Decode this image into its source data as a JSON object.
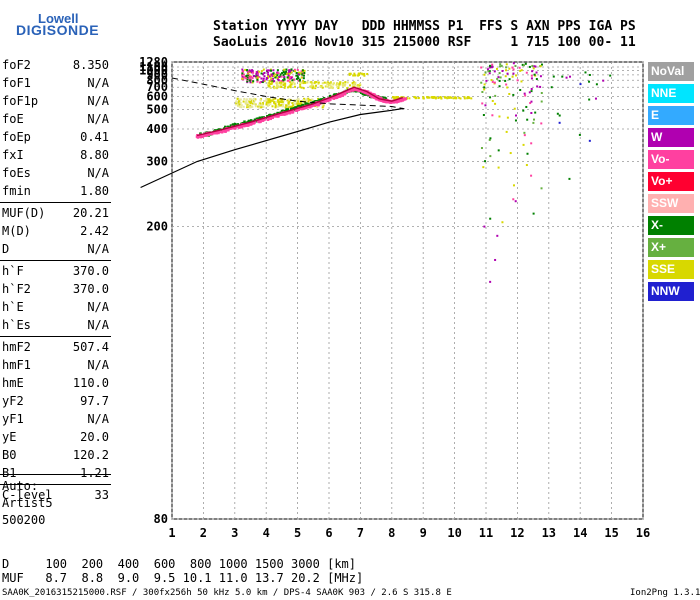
{
  "logo": {
    "line1": "Lowell",
    "line2": "DIGISONDE"
  },
  "header": {
    "row1": "Station YYYY DAY   DDD HHMMSS P1  FFS S AXN PPS IGA PS",
    "row2": "SaoLuis 2016 Nov10 315 215000 RSF     1 715 100 00- 11"
  },
  "params": [
    {
      "label": "foF2",
      "value": "8.350"
    },
    {
      "label": "foF1",
      "value": "N/A"
    },
    {
      "label": "foF1p",
      "value": "N/A"
    },
    {
      "label": "foE",
      "value": "N/A"
    },
    {
      "label": "foEp",
      "value": "0.41"
    },
    {
      "label": "fxI",
      "value": "8.80"
    },
    {
      "label": "foEs",
      "value": "N/A"
    },
    {
      "label": "fmin",
      "value": "1.80"
    },
    {
      "label": "MUF(D)",
      "value": "20.21"
    },
    {
      "label": "M(D)",
      "value": "2.42"
    },
    {
      "label": "D",
      "value": "N/A"
    },
    {
      "label": "h`F",
      "value": "370.0"
    },
    {
      "label": "h`F2",
      "value": "370.0"
    },
    {
      "label": "h`E",
      "value": "N/A"
    },
    {
      "label": "h`Es",
      "value": "N/A"
    },
    {
      "label": "hmF2",
      "value": "507.4"
    },
    {
      "label": "hmF1",
      "value": "N/A"
    },
    {
      "label": "hmE",
      "value": "110.0"
    },
    {
      "label": "yF2",
      "value": "97.7"
    },
    {
      "label": "yF1",
      "value": "N/A"
    },
    {
      "label": "yE",
      "value": "20.0"
    },
    {
      "label": "B0",
      "value": "120.2"
    },
    {
      "label": "B1",
      "value": "1.21"
    },
    {
      "label": "C-level",
      "value": "33"
    }
  ],
  "auto": {
    "line1": "Auto:",
    "line2": "Artist5",
    "line3": "500200"
  },
  "legend": [
    {
      "label": "NoVal",
      "color": "#a0a0a0"
    },
    {
      "label": "NNE",
      "color": "#00e5ff"
    },
    {
      "label": "E",
      "color": "#33aaff"
    },
    {
      "label": "W",
      "color": "#b000b0"
    },
    {
      "label": "Vo-",
      "color": "#ff40a0"
    },
    {
      "label": "Vo+",
      "color": "#ff0030"
    },
    {
      "label": "SSW",
      "color": "#ffb0b0"
    },
    {
      "label": "X-",
      "color": "#008000"
    },
    {
      "label": "X+",
      "color": "#66b040"
    },
    {
      "label": "SSE",
      "color": "#d8d800"
    },
    {
      "label": "NNW",
      "color": "#2020d0"
    }
  ],
  "bottom": {
    "d_line": "D     100  200  400  600  800 1000 1500 3000 [km]",
    "muf_line": "MUF   8.7  8.8  9.0  9.5 10.1 11.0 13.7 20.2 [MHz]"
  },
  "footer": {
    "left": "SAA0K_2016315215000.RSF / 300fx256h 50 kHz 5.0 km / DPS-4 SAA0K 903 / 2.6 S 315.8 E",
    "right": "Ion2Png 1.3.17"
  },
  "chart_data": {
    "type": "scatter",
    "xlim": [
      1,
      16
    ],
    "ylim": [
      80,
      1280
    ],
    "y_scale": "reciprocal",
    "x_ticks": [
      1,
      2,
      3,
      4,
      5,
      6,
      7,
      8,
      9,
      10,
      11,
      12,
      13,
      14,
      15,
      16
    ],
    "y_ticks": [
      80,
      200,
      300,
      400,
      500,
      600,
      700,
      800,
      900,
      1000,
      1100,
      1280
    ],
    "grid": true,
    "series": [
      {
        "name": "X-",
        "values": []
      },
      {
        "name": "Vo-",
        "values": []
      }
    ],
    "profile_solid": [
      [
        0.0,
        250
      ],
      [
        1.8,
        300
      ],
      [
        3,
        330
      ],
      [
        5,
        390
      ],
      [
        6,
        430
      ],
      [
        7,
        470
      ],
      [
        8,
        495
      ],
      [
        8.35,
        507
      ]
    ],
    "trace_dashed": [
      [
        1.0,
        840
      ],
      [
        2,
        740
      ],
      [
        3,
        660
      ],
      [
        4,
        600
      ],
      [
        5,
        560
      ],
      [
        6,
        540
      ],
      [
        7,
        530
      ],
      [
        8,
        520
      ],
      [
        8.4,
        505
      ]
    ],
    "o_trace": [
      [
        1.8,
        375
      ],
      [
        2.5,
        395
      ],
      [
        3.5,
        430
      ],
      [
        4.5,
        480
      ],
      [
        5.5,
        540
      ],
      [
        6.2,
        610
      ],
      [
        6.8,
        700
      ],
      [
        7.2,
        650
      ],
      [
        7.6,
        580
      ],
      [
        8.0,
        560
      ],
      [
        8.35,
        590
      ]
    ],
    "x_trace": [
      [
        1.9,
        380
      ],
      [
        3,
        420
      ],
      [
        4,
        460
      ],
      [
        5,
        520
      ],
      [
        6,
        600
      ],
      [
        6.8,
        690
      ],
      [
        7.3,
        620
      ],
      [
        7.8,
        580
      ]
    ]
  }
}
